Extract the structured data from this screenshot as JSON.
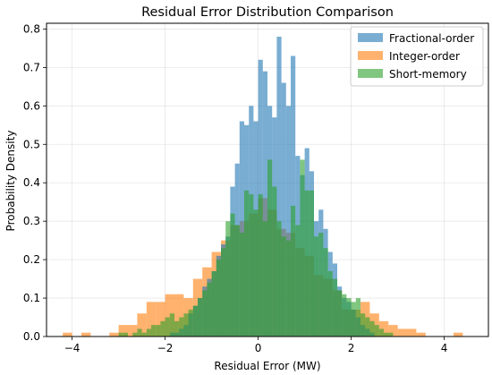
{
  "chart_data": {
    "type": "histogram",
    "title": "Residual Error Distribution Comparison",
    "xlabel": "Residual Error (MW)",
    "ylabel": "Probability Density",
    "xlim": [
      -4.55,
      4.95
    ],
    "ylim": [
      0,
      0.815
    ],
    "xticks": [
      -4,
      -2,
      0,
      2,
      4
    ],
    "xtick_labels": [
      "−4",
      "−2",
      "0",
      "2",
      "4"
    ],
    "yticks": [
      0.0,
      0.1,
      0.2,
      0.3,
      0.4,
      0.5,
      0.6,
      0.7,
      0.8
    ],
    "ytick_labels": [
      "0.0",
      "0.1",
      "0.2",
      "0.3",
      "0.4",
      "0.5",
      "0.6",
      "0.7",
      "0.8"
    ],
    "grid": true,
    "legend_position": "top-right",
    "series": [
      {
        "name": "Integer-order",
        "color": "#ff7f0e",
        "opacity": 0.6,
        "bin_start": -4.2,
        "bin_width": 0.2,
        "densities": [
          0.01,
          0.0,
          0.01,
          0.0,
          0.0,
          0.01,
          0.03,
          0.03,
          0.06,
          0.09,
          0.09,
          0.11,
          0.11,
          0.1,
          0.15,
          0.18,
          0.22,
          0.25,
          0.29,
          0.3,
          0.32,
          0.36,
          0.33,
          0.28,
          0.27,
          0.23,
          0.21,
          0.16,
          0.15,
          0.12,
          0.07,
          0.07,
          0.09,
          0.06,
          0.04,
          0.03,
          0.02,
          0.02,
          0.01,
          0.0,
          0.0,
          0.0,
          0.01
        ]
      },
      {
        "name": "Fractional-order",
        "color": "#1f77b4",
        "opacity": 0.6,
        "bin_start": -2.0,
        "bin_width": 0.1,
        "densities": [
          0.0,
          0.01,
          0.01,
          0.02,
          0.03,
          0.06,
          0.08,
          0.1,
          0.13,
          0.15,
          0.17,
          0.21,
          0.24,
          0.26,
          0.39,
          0.45,
          0.56,
          0.55,
          0.6,
          0.56,
          0.72,
          0.69,
          0.6,
          0.57,
          0.78,
          0.66,
          0.6,
          0.73,
          0.47,
          0.42,
          0.49,
          0.43,
          0.3,
          0.33,
          0.28,
          0.22,
          0.19,
          0.13,
          0.1,
          0.09,
          0.07,
          0.05,
          0.03,
          0.02,
          0.01,
          0.0
        ]
      },
      {
        "name": "Short-memory",
        "color": "#2ca02c",
        "opacity": 0.6,
        "bin_start": -3.0,
        "bin_width": 0.1,
        "densities": [
          0.01,
          0.01,
          0.0,
          0.01,
          0.02,
          0.01,
          0.02,
          0.03,
          0.03,
          0.04,
          0.05,
          0.06,
          0.04,
          0.05,
          0.06,
          0.07,
          0.08,
          0.1,
          0.12,
          0.14,
          0.17,
          0.2,
          0.23,
          0.3,
          0.32,
          0.29,
          0.27,
          0.38,
          0.37,
          0.33,
          0.37,
          0.3,
          0.46,
          0.39,
          0.3,
          0.26,
          0.25,
          0.34,
          0.29,
          0.46,
          0.38,
          0.38,
          0.26,
          0.27,
          0.23,
          0.17,
          0.15,
          0.12,
          0.11,
          0.1,
          0.09,
          0.1,
          0.06,
          0.05,
          0.04,
          0.03,
          0.02,
          0.01,
          0.01
        ]
      }
    ],
    "legend_order": [
      "Fractional-order",
      "Integer-order",
      "Short-memory"
    ]
  }
}
